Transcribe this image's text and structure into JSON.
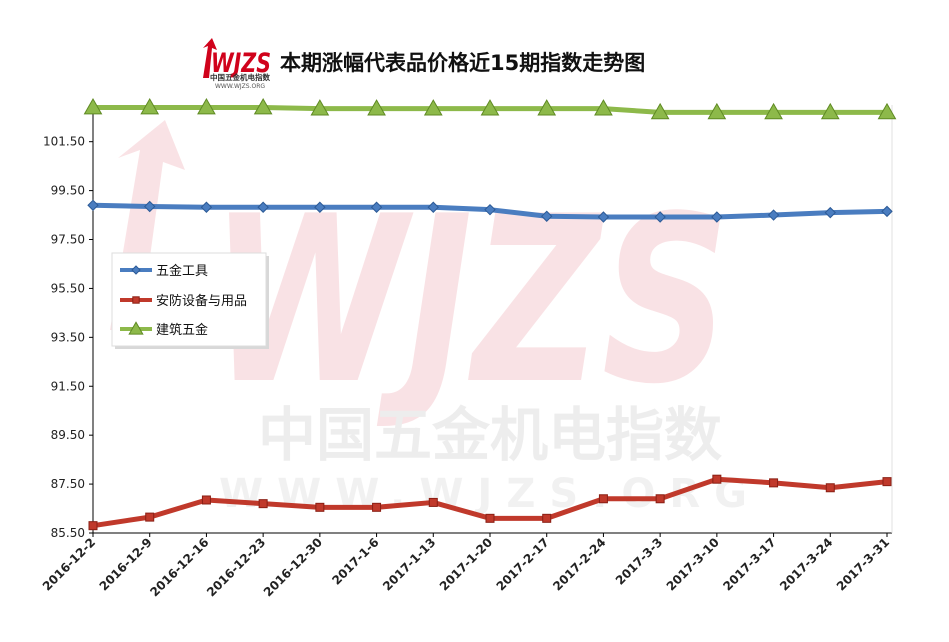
{
  "header": {
    "title": "本期涨幅代表品价格近15期指数走势图",
    "logo_text": "WJZS",
    "logo_sub": "中国五金机电指数",
    "logo_url": "WWW.WJZS.ORG"
  },
  "watermark": {
    "big": "WJZS",
    "cn": "中国五金机电指数",
    "url": "WWW.WJZS.ORG"
  },
  "colors": {
    "series_blue": "#4a7dc0",
    "series_red": "#c0392b",
    "series_green": "#8db94a",
    "logo_red": "#d0021b"
  },
  "chart_data": {
    "type": "line",
    "x": [
      "2016-12-2",
      "2016-12-9",
      "2016-12-16",
      "2016-12-23",
      "2016-12-30",
      "2017-1-6",
      "2017-1-13",
      "2017-1-20",
      "2017-2-17",
      "2017-2-24",
      "2017-3-3",
      "2017-3-10",
      "2017-3-17",
      "2017-3-24",
      "2017-3-31"
    ],
    "ylim": [
      85.5,
      103.0
    ],
    "yticks": [
      "85.50",
      "87.50",
      "89.50",
      "91.50",
      "93.50",
      "95.50",
      "97.50",
      "99.50",
      "101.50"
    ],
    "series": [
      {
        "name": "五金工具",
        "color": "#4a7dc0",
        "marker": "diamond",
        "values": [
          98.9,
          98.85,
          98.82,
          98.82,
          98.82,
          98.82,
          98.82,
          98.72,
          98.45,
          98.42,
          98.42,
          98.42,
          98.5,
          98.6,
          98.65
        ]
      },
      {
        "name": "安防设备与用品",
        "color": "#c0392b",
        "marker": "square",
        "values": [
          85.8,
          86.15,
          86.85,
          86.7,
          86.55,
          86.55,
          86.75,
          86.1,
          86.1,
          86.9,
          86.9,
          87.7,
          87.55,
          87.35,
          87.6
        ]
      },
      {
        "name": "建筑五金",
        "color": "#8db94a",
        "marker": "triangle",
        "values": [
          102.9,
          102.9,
          102.9,
          102.9,
          102.85,
          102.85,
          102.85,
          102.85,
          102.85,
          102.85,
          102.7,
          102.7,
          102.7,
          102.7,
          102.7
        ]
      }
    ],
    "grid": false,
    "legend_position": "left-middle"
  }
}
